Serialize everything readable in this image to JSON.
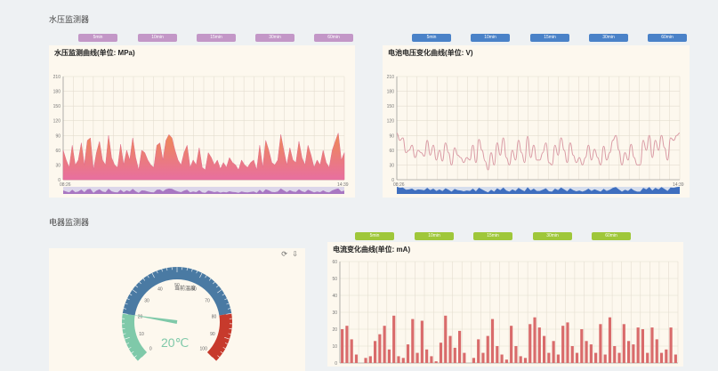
{
  "sections": {
    "water": {
      "title": "水压监测器"
    },
    "electric": {
      "title": "电器监测器"
    }
  },
  "buttons": {
    "water_pressure": [
      "5min",
      "10min",
      "15min",
      "30min",
      "60min"
    ],
    "voltage": [
      "5min",
      "10min",
      "15min",
      "30min",
      "60min"
    ],
    "current": [
      "5min",
      "10min",
      "15min",
      "30min",
      "60min"
    ]
  },
  "colors": {
    "purple_btn": "#c397c7",
    "blue_btn": "#4a82c8",
    "green_btn": "#9fc73a",
    "area_top": "#ee8a52",
    "area_bottom": "#e86fa0",
    "line": "#d99aa4",
    "bar": "#d96b6b",
    "gauge_blue": "#4a7aa3",
    "gauge_green": "#7fc9a9",
    "gauge_red": "#c73a2c"
  },
  "gauge": {
    "label": "当前温度",
    "value_text": "20℃",
    "value": 20,
    "min": 0,
    "max": 100,
    "ticks": [
      "0",
      "10",
      "20",
      "30",
      "40",
      "50",
      "60",
      "70",
      "80",
      "90",
      "100"
    ],
    "icons": [
      "refresh-icon",
      "download-icon"
    ]
  },
  "chart_data": [
    {
      "type": "area",
      "title": "水压监测曲线(单位: MPa)",
      "ylim": [
        0,
        210
      ],
      "yticks": [
        "0",
        "30",
        "60",
        "90",
        "120",
        "150",
        "180",
        "210"
      ],
      "x_start": "08:26",
      "x_end": "14:39",
      "values": [
        60,
        40,
        25,
        70,
        30,
        40,
        75,
        30,
        80,
        85,
        20,
        55,
        78,
        40,
        30,
        90,
        45,
        30,
        25,
        72,
        30,
        60,
        40,
        85,
        45,
        20,
        60,
        55,
        40,
        30,
        25,
        70,
        75,
        40,
        80,
        92,
        85,
        60,
        40,
        30,
        55,
        70,
        25,
        40,
        30,
        65,
        25,
        20,
        55,
        45,
        30,
        40,
        22,
        35,
        25,
        45,
        35,
        30,
        20,
        40,
        30,
        25,
        35,
        40,
        20,
        70,
        25,
        80,
        60,
        35,
        30,
        40,
        92,
        60,
        30,
        65,
        40,
        35,
        78,
        45,
        30,
        70,
        50,
        25,
        40,
        30,
        60,
        35,
        25,
        60,
        78,
        95,
        40,
        55
      ],
      "brush": true
    },
    {
      "type": "line",
      "title": "电池电压变化曲线(单位: V)",
      "ylim": [
        0,
        210
      ],
      "yticks": [
        "0",
        "30",
        "60",
        "90",
        "120",
        "150",
        "180",
        "210"
      ],
      "x_start": "08:26",
      "x_end": "14:39",
      "values": [
        95,
        80,
        85,
        55,
        60,
        70,
        45,
        60,
        55,
        48,
        80,
        50,
        70,
        40,
        60,
        38,
        75,
        55,
        30,
        65,
        50,
        45,
        35,
        45,
        40,
        70,
        35,
        82,
        60,
        38,
        20,
        55,
        30,
        75,
        50,
        85,
        45,
        30,
        60,
        40,
        80,
        55,
        35,
        88,
        45,
        70,
        40,
        40,
        55,
        75,
        35,
        30,
        70,
        50,
        85,
        60,
        35,
        75,
        50,
        35,
        45,
        30,
        45,
        70,
        40,
        62,
        45,
        30,
        68,
        40,
        55,
        80,
        90,
        60,
        30,
        55,
        40,
        72,
        45,
        30,
        30,
        80,
        60,
        90,
        45,
        80,
        60,
        90,
        65,
        40,
        85,
        80,
        90,
        95
      ],
      "brush": true
    },
    {
      "type": "bar",
      "title": "电流变化曲线(单位: mA)",
      "ylim": [
        0,
        60
      ],
      "yticks": [
        "0",
        "10",
        "20",
        "30",
        "40",
        "50",
        "60"
      ],
      "values": [
        20,
        22,
        14,
        5,
        0,
        3,
        4,
        13,
        17,
        22,
        8,
        28,
        4,
        3,
        11,
        26,
        6,
        25,
        8,
        4,
        1,
        12,
        28,
        16,
        9,
        19,
        6,
        0,
        3,
        14,
        6,
        16,
        26,
        10,
        5,
        2,
        22,
        10,
        4,
        3,
        23,
        27,
        21,
        16,
        6,
        13,
        5,
        22,
        24,
        10,
        6,
        20,
        13,
        11,
        6,
        23,
        5,
        27,
        10,
        6,
        23,
        13,
        11,
        21,
        20,
        6,
        21,
        14,
        6,
        8,
        21,
        5
      ]
    }
  ]
}
